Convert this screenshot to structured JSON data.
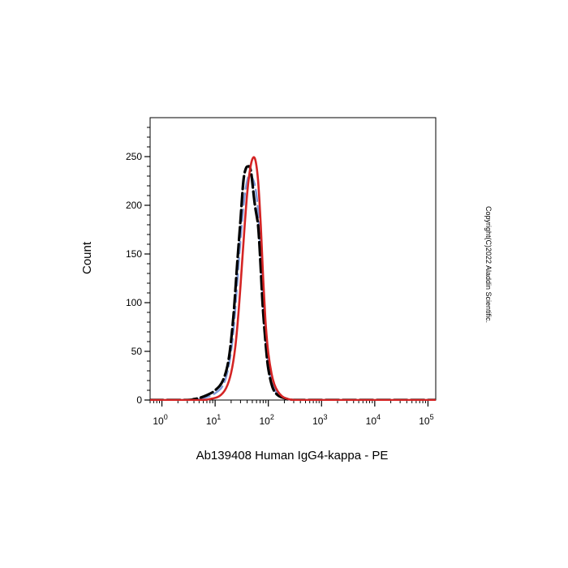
{
  "chart_data": {
    "type": "line",
    "title": "",
    "xlabel": "Ab139408 Human IgG4-kappa - PE",
    "ylabel": "Count",
    "x_scale": "log",
    "xlim": [
      0.6,
      140000
    ],
    "ylim": [
      0,
      290
    ],
    "x_ticks": [
      {
        "value": 1,
        "base": "10",
        "exp": "0"
      },
      {
        "value": 10,
        "base": "10",
        "exp": "1"
      },
      {
        "value": 100,
        "base": "10",
        "exp": "2"
      },
      {
        "value": 1000,
        "base": "10",
        "exp": "3"
      },
      {
        "value": 10000,
        "base": "10",
        "exp": "4"
      },
      {
        "value": 100000,
        "base": "10",
        "exp": "5"
      }
    ],
    "y_ticks": [
      0,
      50,
      100,
      150,
      200,
      250
    ],
    "grid": false,
    "legend": "none",
    "series": [
      {
        "color": "#7f9ad8",
        "dash": "dashed",
        "x": [
          0.6,
          3,
          5,
          7,
          10,
          14,
          18,
          22,
          26,
          30,
          35,
          40,
          45,
          50,
          55,
          60,
          65,
          70,
          75,
          80,
          90,
          100,
          120,
          150,
          200,
          300,
          1000,
          140000
        ],
        "y": [
          0,
          0,
          1,
          3,
          7,
          15,
          35,
          70,
          120,
          165,
          205,
          225,
          232,
          228,
          222,
          210,
          190,
          165,
          135,
          105,
          65,
          38,
          16,
          6,
          2,
          0,
          0,
          0
        ]
      },
      {
        "color": "#000000",
        "dash": "dashed",
        "x": [
          0.6,
          3,
          4,
          5,
          7,
          10,
          14,
          18,
          22,
          26,
          30,
          34,
          38,
          42,
          45,
          48,
          52,
          56,
          60,
          64,
          68,
          72,
          76,
          80,
          90,
          100,
          120,
          150,
          200,
          300,
          1000,
          140000
        ],
        "y": [
          0,
          0,
          1,
          2,
          5,
          10,
          20,
          42,
          85,
          140,
          185,
          225,
          238,
          240,
          239,
          232,
          215,
          200,
          190,
          180,
          160,
          135,
          110,
          90,
          55,
          32,
          13,
          5,
          2,
          0,
          0,
          0
        ]
      },
      {
        "color": "#d42424",
        "dash": "solid",
        "x": [
          0.6,
          5,
          8,
          12,
          16,
          20,
          24,
          28,
          32,
          36,
          40,
          44,
          48,
          52,
          56,
          60,
          64,
          68,
          72,
          76,
          80,
          85,
          90,
          100,
          115,
          130,
          150,
          180,
          220,
          300,
          400,
          1000,
          140000
        ],
        "y": [
          0,
          0,
          1,
          4,
          12,
          28,
          55,
          95,
          140,
          180,
          212,
          232,
          244,
          249,
          248,
          240,
          226,
          205,
          180,
          152,
          125,
          98,
          75,
          48,
          27,
          16,
          9,
          4,
          1.5,
          0,
          0,
          0,
          0
        ]
      }
    ]
  },
  "copyright": "Copyright(C)2022 Aladdin Scientific."
}
